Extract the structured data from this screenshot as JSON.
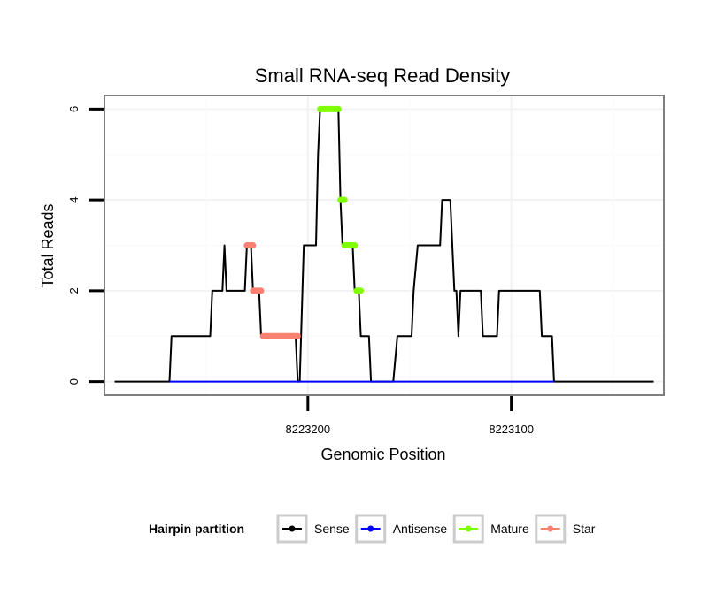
{
  "chart_data": {
    "type": "line",
    "title": "Small RNA-seq Read Density",
    "xlabel": "Genomic Position",
    "ylabel": "Total Reads",
    "xlim": [
      8223300,
      8223025
    ],
    "ylim": [
      -0.3,
      6.3
    ],
    "x_ticks": [
      8223200,
      8223100
    ],
    "x_tick_labels": [
      "8223200",
      "8223100"
    ],
    "y_ticks": [
      0,
      2,
      4,
      6
    ],
    "y_tick_labels": [
      "0",
      "2",
      "4",
      "6"
    ],
    "grid": true,
    "legend": {
      "title": "Hairpin partition",
      "position": "bottom",
      "entries": [
        {
          "name": "Sense",
          "color": "#000000"
        },
        {
          "name": "Antisense",
          "color": "#0000ff"
        },
        {
          "name": "Mature",
          "color": "#7fff00"
        },
        {
          "name": "Star",
          "color": "#fa8072"
        }
      ]
    },
    "series": [
      {
        "name": "Sense",
        "color": "#000000",
        "style": "line",
        "points": [
          [
            8223295,
            0
          ],
          [
            8223268,
            0
          ],
          [
            8223267,
            1
          ],
          [
            8223248,
            1
          ],
          [
            8223247,
            2
          ],
          [
            8223242,
            2
          ],
          [
            8223241,
            3
          ],
          [
            8223240,
            2
          ],
          [
            8223231,
            2
          ],
          [
            8223230,
            3
          ],
          [
            8223228,
            3
          ],
          [
            8223227,
            2
          ],
          [
            8223224,
            2
          ],
          [
            8223223,
            1
          ],
          [
            8223206,
            1
          ],
          [
            8223205,
            0
          ],
          [
            8223204,
            0
          ],
          [
            8223202,
            3
          ],
          [
            8223196,
            3
          ],
          [
            8223195,
            5
          ],
          [
            8223194,
            6
          ],
          [
            8223185,
            6
          ],
          [
            8223184,
            4
          ],
          [
            8223183,
            3
          ],
          [
            8223178,
            3
          ],
          [
            8223177,
            2
          ],
          [
            8223175,
            2
          ],
          [
            8223174,
            1
          ],
          [
            8223170,
            1
          ],
          [
            8223169,
            0
          ],
          [
            8223158,
            0
          ],
          [
            8223156,
            1
          ],
          [
            8223149,
            1
          ],
          [
            8223148,
            2
          ],
          [
            8223146,
            3
          ],
          [
            8223135,
            3
          ],
          [
            8223134,
            4
          ],
          [
            8223130,
            4
          ],
          [
            8223128,
            2
          ],
          [
            8223127,
            2
          ],
          [
            8223126,
            1
          ],
          [
            8223125,
            2
          ],
          [
            8223115,
            2
          ],
          [
            8223114,
            1
          ],
          [
            8223107,
            1
          ],
          [
            8223106,
            2
          ],
          [
            8223086,
            2
          ],
          [
            8223085,
            1
          ],
          [
            8223080,
            1
          ],
          [
            8223079,
            0
          ],
          [
            8223030,
            0
          ]
        ]
      },
      {
        "name": "Antisense",
        "color": "#0000ff",
        "style": "line",
        "points": [
          [
            8223268,
            0
          ],
          [
            8223079,
            0
          ]
        ]
      },
      {
        "name": "Mature",
        "color": "#7fff00",
        "style": "segments",
        "segments": [
          [
            [
              8223194,
              6
            ],
            [
              8223185,
              6
            ]
          ],
          [
            [
              8223184,
              4
            ],
            [
              8223182,
              4
            ]
          ],
          [
            [
              8223182,
              3
            ],
            [
              8223177,
              3
            ]
          ],
          [
            [
              8223176,
              2
            ],
            [
              8223174,
              2
            ]
          ]
        ]
      },
      {
        "name": "Star",
        "color": "#fa8072",
        "style": "segments",
        "segments": [
          [
            [
              8223230,
              3
            ],
            [
              8223227,
              3
            ]
          ],
          [
            [
              8223227,
              2
            ],
            [
              8223223,
              2
            ]
          ],
          [
            [
              8223222,
              1
            ],
            [
              8223205,
              1
            ]
          ]
        ]
      }
    ]
  }
}
